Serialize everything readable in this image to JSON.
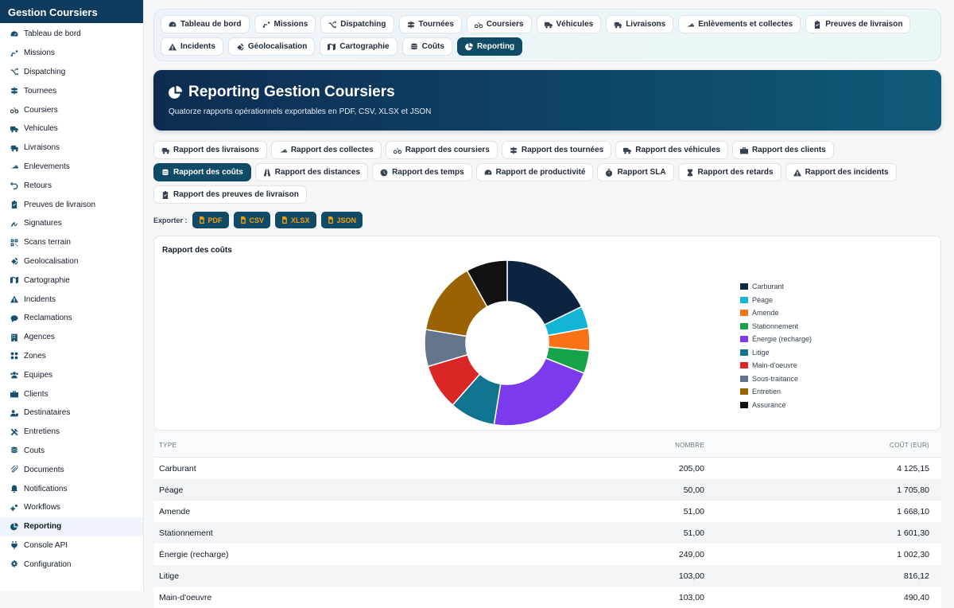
{
  "app": {
    "title": "Gestion Coursiers"
  },
  "sidebar": {
    "items": [
      {
        "label": "Tableau de bord",
        "icon": "dashboard-icon"
      },
      {
        "label": "Missions",
        "icon": "route-icon"
      },
      {
        "label": "Dispatching",
        "icon": "shuffle-icon"
      },
      {
        "label": "Tournees",
        "icon": "signs-icon"
      },
      {
        "label": "Coursiers",
        "icon": "bicycle-icon"
      },
      {
        "label": "Vehicules",
        "icon": "truck-icon"
      },
      {
        "label": "Livraisons",
        "icon": "truck-fast-icon"
      },
      {
        "label": "Enlevements",
        "icon": "ramp-icon"
      },
      {
        "label": "Retours",
        "icon": "undo-icon"
      },
      {
        "label": "Preuves de livraison",
        "icon": "clipboard-check-icon"
      },
      {
        "label": "Signatures",
        "icon": "signature-icon"
      },
      {
        "label": "Scans terrain",
        "icon": "qrcode-icon"
      },
      {
        "label": "Geolocalisation",
        "icon": "satellite-icon"
      },
      {
        "label": "Cartographie",
        "icon": "map-icon"
      },
      {
        "label": "Incidents",
        "icon": "warning-icon"
      },
      {
        "label": "Reclamations",
        "icon": "comment-icon"
      },
      {
        "label": "Agences",
        "icon": "building-icon"
      },
      {
        "label": "Zones",
        "icon": "zones-icon"
      },
      {
        "label": "Equipes",
        "icon": "users-icon"
      },
      {
        "label": "Clients",
        "icon": "briefcase-icon"
      },
      {
        "label": "Destinataires",
        "icon": "user-tag-icon"
      },
      {
        "label": "Entretiens",
        "icon": "tools-icon"
      },
      {
        "label": "Couts",
        "icon": "coins-icon"
      },
      {
        "label": "Documents",
        "icon": "paperclip-icon"
      },
      {
        "label": "Notifications",
        "icon": "bell-icon"
      },
      {
        "label": "Workflows",
        "icon": "cogs-icon"
      },
      {
        "label": "Reporting",
        "icon": "chart-pie-icon",
        "active": true
      },
      {
        "label": "Console API",
        "icon": "plug-icon"
      },
      {
        "label": "Configuration",
        "icon": "gear-icon"
      }
    ]
  },
  "topnav": {
    "items": [
      {
        "label": "Tableau de bord",
        "icon": "dashboard-icon"
      },
      {
        "label": "Missions",
        "icon": "route-icon"
      },
      {
        "label": "Dispatching",
        "icon": "shuffle-icon"
      },
      {
        "label": "Tournées",
        "icon": "signs-icon"
      },
      {
        "label": "Coursiers",
        "icon": "bicycle-icon"
      },
      {
        "label": "Véhicules",
        "icon": "truck-icon"
      },
      {
        "label": "Livraisons",
        "icon": "truck-fast-icon"
      },
      {
        "label": "Enlèvements et collectes",
        "icon": "ramp-icon"
      },
      {
        "label": "Preuves de livraison",
        "icon": "clipboard-check-icon"
      },
      {
        "label": "Incidents",
        "icon": "warning-icon"
      },
      {
        "label": "Géolocalisation",
        "icon": "satellite-icon"
      },
      {
        "label": "Cartographie",
        "icon": "map-icon"
      },
      {
        "label": "Coûts",
        "icon": "coins-icon"
      },
      {
        "label": "Reporting",
        "icon": "chart-pie-icon",
        "active": true
      }
    ]
  },
  "hero": {
    "title": "Reporting Gestion Coursiers",
    "subtitle": "Quatorze rapports opérationnels exportables en PDF, CSV, XLSX et JSON"
  },
  "reports": {
    "items": [
      {
        "label": "Rapport des livraisons",
        "icon": "truck-fast-icon"
      },
      {
        "label": "Rapport des collectes",
        "icon": "ramp-icon"
      },
      {
        "label": "Rapport des coursiers",
        "icon": "bicycle-icon"
      },
      {
        "label": "Rapport des tournées",
        "icon": "signs-icon"
      },
      {
        "label": "Rapport des véhicules",
        "icon": "truck-icon"
      },
      {
        "label": "Rapport des clients",
        "icon": "briefcase-icon"
      },
      {
        "label": "Rapport des coûts",
        "icon": "coins-icon",
        "active": true
      },
      {
        "label": "Rapport des distances",
        "icon": "road-icon"
      },
      {
        "label": "Rapport des temps",
        "icon": "clock-icon"
      },
      {
        "label": "Rapport de productivité",
        "icon": "gauge-icon"
      },
      {
        "label": "Rapport SLA",
        "icon": "stopwatch-icon"
      },
      {
        "label": "Rapport des retards",
        "icon": "hourglass-icon"
      },
      {
        "label": "Rapport des incidents",
        "icon": "warning-icon"
      },
      {
        "label": "Rapport des preuves de livraison",
        "icon": "clipboard-check-icon"
      }
    ]
  },
  "export": {
    "label": "Exporter :",
    "buttons": [
      {
        "label": "PDF",
        "icon": "file-icon"
      },
      {
        "label": "CSV",
        "icon": "file-icon"
      },
      {
        "label": "XLSX",
        "icon": "file-icon"
      },
      {
        "label": "JSON",
        "icon": "file-icon"
      }
    ]
  },
  "chart_data": {
    "type": "pie",
    "donut": true,
    "title": "Rapport des coûts",
    "categories": [
      "Carburant",
      "Péage",
      "Amende",
      "Stationnement",
      "Énergie (recharge)",
      "Litige",
      "Main-d'oeuvre",
      "Sous-traitance",
      "Entretien",
      "Assurance"
    ],
    "values": [
      205,
      50,
      51,
      51,
      249,
      103,
      103,
      83,
      165,
      93
    ],
    "colors": [
      "#0d2440",
      "#12b5d6",
      "#f97316",
      "#16a34a",
      "#7c3aed",
      "#0e7490",
      "#dc2626",
      "#64748b",
      "#9a6200",
      "#111111"
    ],
    "legend": "right"
  },
  "table": {
    "headers": [
      "TYPE",
      "NOMBRE",
      "COÛT (EUR)"
    ],
    "rows": [
      [
        "Carburant",
        "205,00",
        "4 125,15"
      ],
      [
        "Péage",
        "50,00",
        "1 705,80"
      ],
      [
        "Amende",
        "51,00",
        "1 668,10"
      ],
      [
        "Stationnement",
        "51,00",
        "1 601,30"
      ],
      [
        "Énergie (recharge)",
        "249,00",
        "1 002,30"
      ],
      [
        "Litige",
        "103,00",
        "816,12"
      ],
      [
        "Main-d'oeuvre",
        "103,00",
        "490,40"
      ]
    ]
  }
}
